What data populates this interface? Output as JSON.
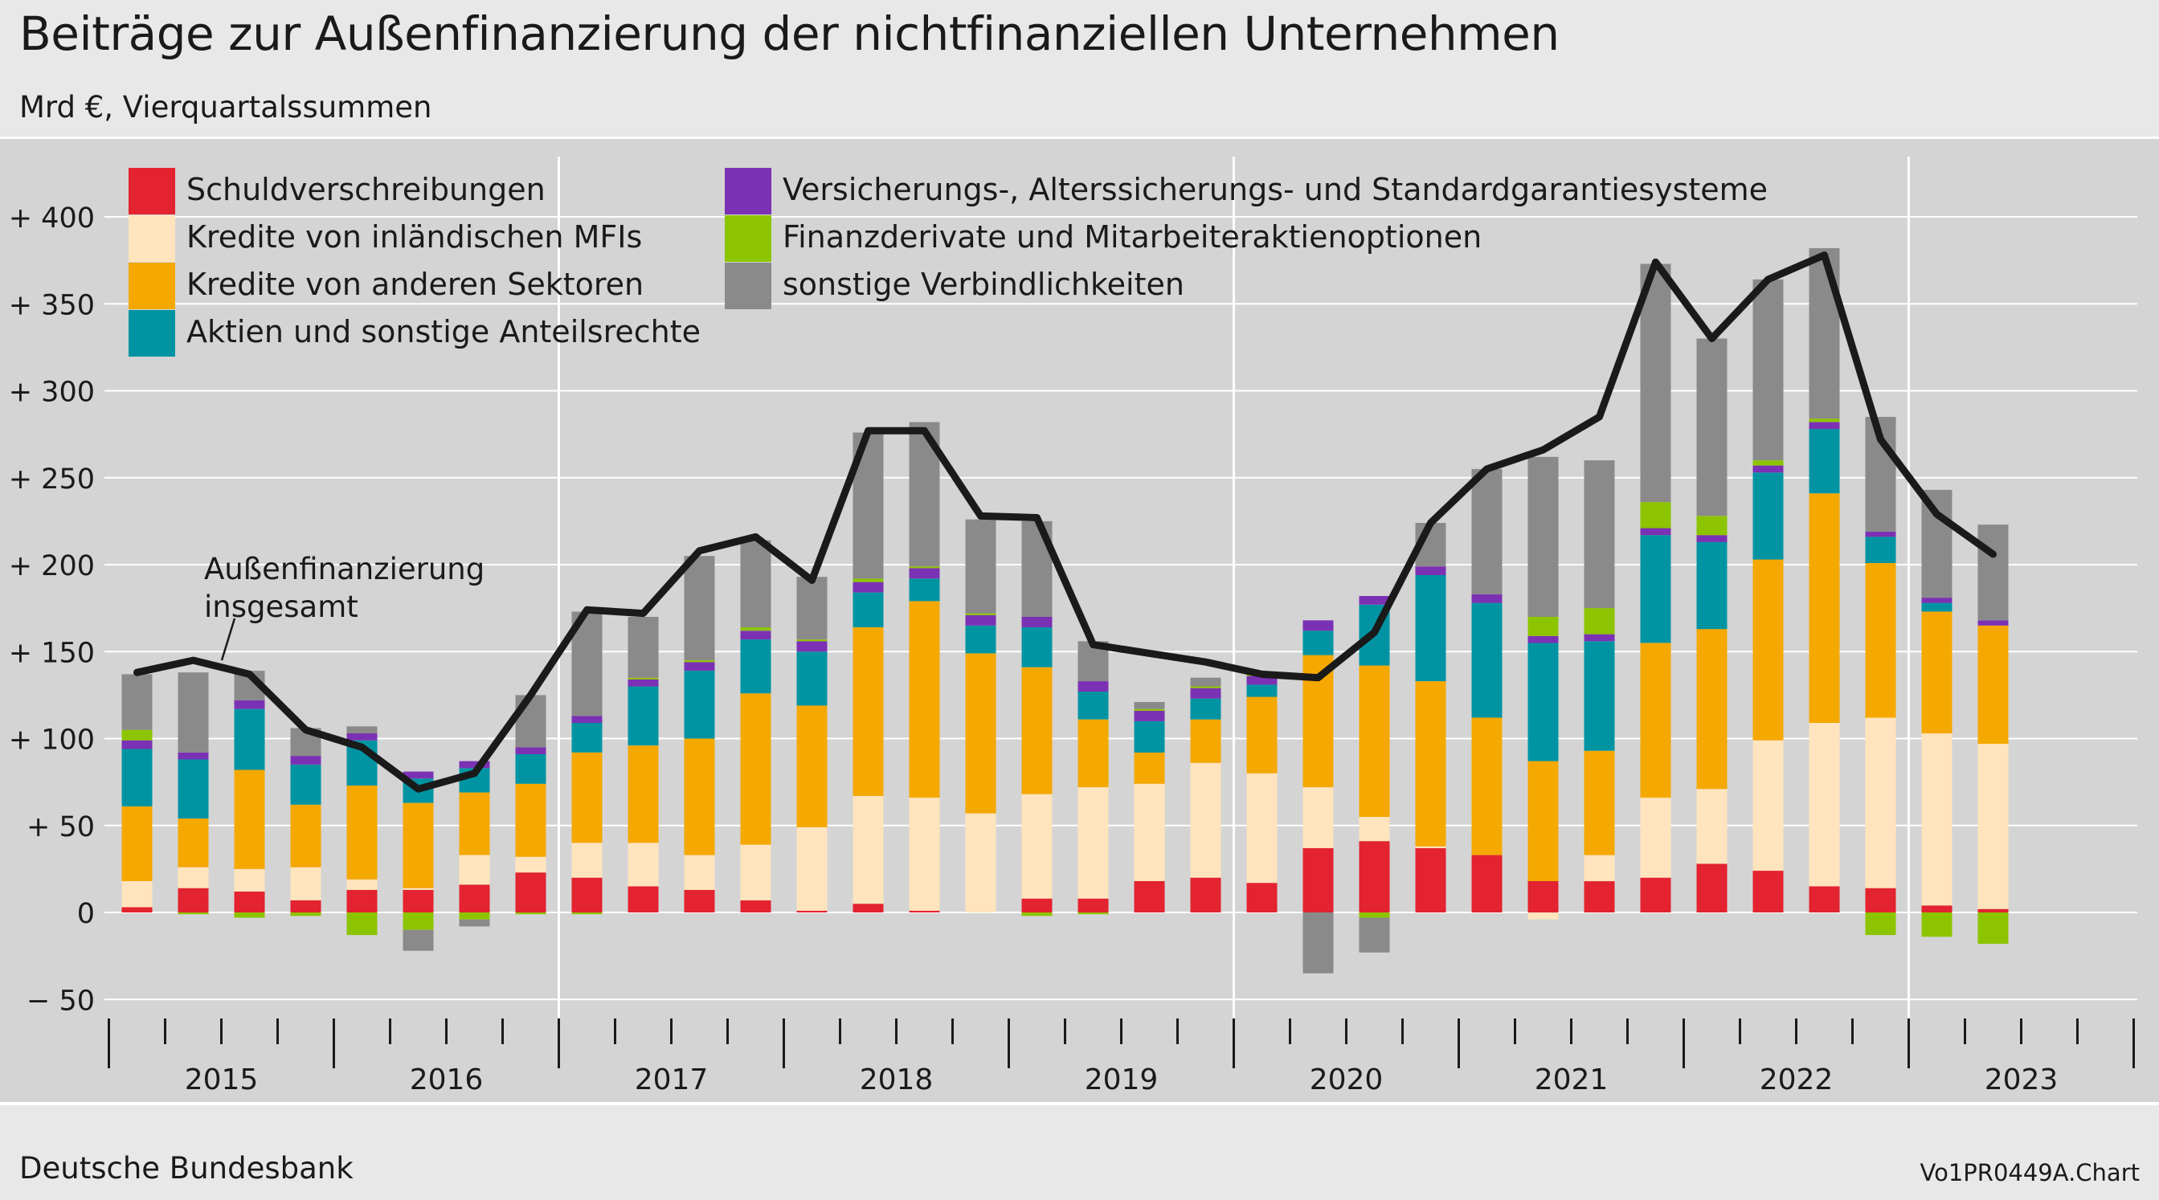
{
  "title": "Beiträge zur Außenfinanzierung der nichtfinanziellen Unternehmen",
  "subtitle": "Mrd €, Vierquartalssummen",
  "footer": {
    "source": "Deutsche Bundesbank",
    "code": "Vo1PR0449A.Chart"
  },
  "chart_data": {
    "type": "bar",
    "stacked": true,
    "grid": true,
    "legend_position": "top-left",
    "ylim": [
      -55,
      430
    ],
    "y_ticks": [
      {
        "value": 400,
        "label": "+ 400"
      },
      {
        "value": 350,
        "label": "+ 350"
      },
      {
        "value": 300,
        "label": "+ 300"
      },
      {
        "value": 250,
        "label": "+ 250"
      },
      {
        "value": 200,
        "label": "+ 200"
      },
      {
        "value": 150,
        "label": "+ 150"
      },
      {
        "value": 100,
        "label": "+ 100"
      },
      {
        "value": 50,
        "label": "+   50"
      },
      {
        "value": 0,
        "label": "0"
      },
      {
        "value": -50,
        "label": "−   50"
      }
    ],
    "years": [
      "2015",
      "2016",
      "2017",
      "2018",
      "2019",
      "2020",
      "2021",
      "2022",
      "2023"
    ],
    "categories": [
      "2015 Q1",
      "2015 Q2",
      "2015 Q3",
      "2015 Q4",
      "2016 Q1",
      "2016 Q2",
      "2016 Q3",
      "2016 Q4",
      "2017 Q1",
      "2017 Q2",
      "2017 Q3",
      "2017 Q4",
      "2018 Q1",
      "2018 Q2",
      "2018 Q3",
      "2018 Q4",
      "2019 Q1",
      "2019 Q2",
      "2019 Q3",
      "2019 Q4",
      "2020 Q1",
      "2020 Q2",
      "2020 Q3",
      "2020 Q4",
      "2021 Q1",
      "2021 Q2",
      "2021 Q3",
      "2021 Q4",
      "2022 Q1",
      "2022 Q2",
      "2022 Q3",
      "2022 Q4",
      "2023 Q1",
      "2023 Q2"
    ],
    "series": [
      {
        "name": "Schuldverschreibungen",
        "color": "#e3232f",
        "values": [
          3,
          14,
          12,
          7,
          13,
          13,
          16,
          23,
          20,
          15,
          13,
          7,
          1,
          5,
          1,
          0,
          8,
          8,
          18,
          20,
          17,
          37,
          41,
          37,
          33,
          18,
          18,
          20,
          28,
          24,
          15,
          14,
          4,
          2
        ]
      },
      {
        "name": "Kredite von inländischen MFIs",
        "color": "#ffe4bd",
        "values": [
          15,
          12,
          13,
          19,
          6,
          1,
          17,
          9,
          20,
          25,
          20,
          32,
          48,
          62,
          65,
          57,
          60,
          64,
          56,
          66,
          63,
          35,
          14,
          1,
          0,
          -4,
          15,
          46,
          43,
          75,
          94,
          98,
          99,
          95
        ]
      },
      {
        "name": "Kredite von anderen Sektoren",
        "color": "#f5a800",
        "values": [
          43,
          28,
          57,
          36,
          54,
          49,
          36,
          42,
          52,
          56,
          67,
          87,
          70,
          97,
          113,
          92,
          73,
          39,
          18,
          25,
          44,
          76,
          87,
          95,
          79,
          69,
          60,
          89,
          92,
          104,
          132,
          89,
          70,
          68
        ]
      },
      {
        "name": "Aktien und sonstige Anteilsrechte",
        "color": "#0094a3",
        "values": [
          33,
          34,
          35,
          23,
          26,
          14,
          14,
          17,
          17,
          34,
          39,
          31,
          31,
          20,
          13,
          16,
          23,
          16,
          18,
          12,
          7,
          14,
          35,
          61,
          66,
          68,
          63,
          62,
          50,
          50,
          37,
          15,
          5,
          0
        ]
      },
      {
        "name": "Versicherungs-, Alterssicherungs- und Standardgarantiesysteme",
        "color": "#7b31b4",
        "values": [
          5,
          4,
          5,
          5,
          4,
          4,
          4,
          4,
          4,
          4,
          5,
          5,
          6,
          6,
          6,
          6,
          6,
          6,
          6,
          6,
          5,
          6,
          5,
          5,
          5,
          4,
          4,
          4,
          4,
          4,
          4,
          3,
          3,
          3
        ]
      },
      {
        "name": "Finanzderivate und Mitarbeiteraktienoptionen",
        "color": "#8dc400",
        "values": [
          6,
          -1,
          -3,
          -2,
          -13,
          -10,
          -4,
          -1,
          -1,
          1,
          1,
          2,
          1,
          2,
          1,
          1,
          -2,
          -1,
          1,
          1,
          1,
          0,
          -3,
          0,
          0,
          11,
          15,
          15,
          11,
          3,
          2,
          -13,
          -14,
          -18
        ]
      },
      {
        "name": "sonstige Verbindlichkeiten",
        "color": "#8a8a8a",
        "values": [
          32,
          46,
          17,
          16,
          4,
          -12,
          -4,
          30,
          60,
          35,
          60,
          50,
          36,
          84,
          83,
          54,
          55,
          23,
          4,
          5,
          0,
          -35,
          -20,
          25,
          72,
          92,
          85,
          137,
          102,
          104,
          98,
          66,
          62,
          55
        ]
      }
    ],
    "line": {
      "name": "Außenfinanzierung insgesamt",
      "color": "#1a1a1a",
      "values": [
        138,
        145,
        137,
        105,
        95,
        71,
        80,
        125,
        174,
        172,
        208,
        216,
        191,
        277,
        277,
        228,
        227,
        154,
        149,
        144,
        137,
        135,
        161,
        224,
        255,
        266,
        285,
        374,
        330,
        364,
        378,
        272,
        229,
        206
      ]
    },
    "annotation": {
      "lines": [
        "Außenfinanzierung",
        "insgesamt"
      ]
    }
  }
}
